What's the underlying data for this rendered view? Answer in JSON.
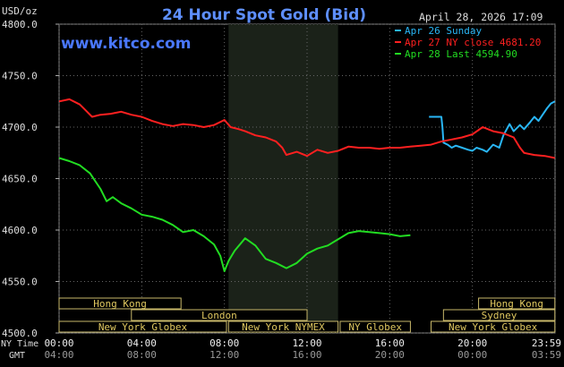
{
  "header": {
    "title": "24 Hour Spot Gold (Bid)",
    "unit": "USD/oz",
    "datetime": "April 28, 2026 17:09",
    "site": "www.kitco.com"
  },
  "legend": [
    {
      "text": "Apr 26 Sunday",
      "color": "#29b6f6"
    },
    {
      "text": "Apr 27 NY close 4681.20",
      "color": "#ff2020"
    },
    {
      "text": "Apr 28 Last 4594.90",
      "color": "#22dd22"
    }
  ],
  "axis": {
    "ny_time_label": "NY Time",
    "gmt_label": "GMT",
    "ny_ticks": [
      "00:00",
      "04:00",
      "08:00",
      "12:00",
      "16:00",
      "20:00",
      "23:59"
    ],
    "gmt_ticks": [
      "04:00",
      "08:00",
      "12:00",
      "16:00",
      "20:00",
      "00:00",
      "03:59"
    ]
  },
  "sessions": [
    {
      "label": "Hong Kong",
      "start": 0,
      "end": 5.9,
      "row": 0
    },
    {
      "label": "London",
      "start": 3.5,
      "end": 12.0,
      "row": 1
    },
    {
      "label": "New York Globex",
      "start": 0,
      "end": 8.1,
      "row": 2
    },
    {
      "label": "New York NYMEX",
      "start": 8.2,
      "end": 13.5,
      "row": 2
    },
    {
      "label": "NY Globex",
      "start": 13.6,
      "end": 17.0,
      "row": 2
    },
    {
      "label": "Hong Kong",
      "start": 20.3,
      "end": 23.99,
      "row": 0
    },
    {
      "label": "Sydney",
      "start": 18.6,
      "end": 23.99,
      "row": 1
    },
    {
      "label": "New York Globex",
      "start": 18.0,
      "end": 23.99,
      "row": 2
    }
  ],
  "chart_data": {
    "type": "line",
    "title": "24 Hour Spot Gold (Bid)",
    "ylabel": "USD/oz",
    "xlim": [
      0,
      24
    ],
    "ylim": [
      4500,
      4800
    ],
    "y_ticks": [
      "4800.0",
      "4750.0",
      "4700.0",
      "4650.0",
      "4600.0",
      "4550.0",
      "4500.0"
    ],
    "shaded_hours": [
      8.2,
      13.5
    ],
    "grid": true,
    "legend_position": "top-right",
    "series": [
      {
        "name": "Apr 26 Sunday",
        "color": "#29b6f6",
        "x": [
          17.9,
          18.5,
          18.55,
          18.6,
          18.8,
          19.0,
          19.2,
          19.5,
          19.8,
          20.0,
          20.2,
          20.5,
          20.7,
          21.0,
          21.3,
          21.5,
          21.8,
          22.0,
          22.3,
          22.5,
          22.8,
          23.0,
          23.2,
          23.4,
          23.6,
          23.8,
          23.99
        ],
        "y": [
          4710,
          4710,
          4700,
          4685,
          4683,
          4680,
          4682,
          4680,
          4678,
          4677,
          4680,
          4678,
          4676,
          4683,
          4680,
          4692,
          4703,
          4696,
          4702,
          4698,
          4705,
          4710,
          4706,
          4712,
          4718,
          4723,
          4725
        ]
      },
      {
        "name": "Apr 27 NY close 4681.20",
        "color": "#ff2020",
        "x": [
          0,
          0.5,
          1.0,
          1.3,
          1.6,
          2.0,
          2.5,
          3.0,
          3.5,
          4.0,
          4.5,
          5.0,
          5.5,
          6.0,
          6.5,
          7.0,
          7.5,
          8.0,
          8.3,
          8.7,
          9.0,
          9.5,
          10.0,
          10.5,
          10.8,
          11.0,
          11.5,
          12.0,
          12.5,
          13.0,
          13.5,
          14.0,
          14.5,
          15.0,
          15.5,
          16.0,
          16.5,
          17.0,
          17.5,
          18.0,
          18.5,
          19.0,
          19.5,
          20.0,
          20.5,
          21.0,
          21.5,
          22.0,
          22.3,
          22.5,
          23.0,
          23.5,
          23.99
        ],
        "y": [
          4725,
          4727,
          4722,
          4716,
          4710,
          4712,
          4713,
          4715,
          4712,
          4710,
          4706,
          4703,
          4701,
          4703,
          4702,
          4700,
          4702,
          4707,
          4700,
          4698,
          4696,
          4692,
          4690,
          4686,
          4680,
          4673,
          4676,
          4672,
          4678,
          4675,
          4677,
          4681,
          4680,
          4680,
          4679,
          4680,
          4680,
          4681,
          4682,
          4683,
          4686,
          4688,
          4690,
          4693,
          4700,
          4696,
          4694,
          4690,
          4680,
          4675,
          4673,
          4672,
          4670
        ]
      },
      {
        "name": "Apr 28 Last 4594.90",
        "color": "#22dd22",
        "x": [
          0,
          0.5,
          1.0,
          1.5,
          2.0,
          2.3,
          2.6,
          3.0,
          3.5,
          4.0,
          4.5,
          5.0,
          5.5,
          6.0,
          6.5,
          7.0,
          7.5,
          7.8,
          8.0,
          8.2,
          8.5,
          9.0,
          9.5,
          10.0,
          10.5,
          11.0,
          11.5,
          12.0,
          12.5,
          13.0,
          13.5,
          14.0,
          14.5,
          15.0,
          15.5,
          16.0,
          16.5,
          17.0
        ],
        "y": [
          4670,
          4667,
          4663,
          4655,
          4640,
          4628,
          4632,
          4626,
          4621,
          4615,
          4613,
          4610,
          4605,
          4598,
          4600,
          4594,
          4586,
          4575,
          4560,
          4570,
          4580,
          4592,
          4585,
          4572,
          4568,
          4563,
          4568,
          4577,
          4582,
          4585,
          4591,
          4597,
          4599,
          4598,
          4597,
          4596,
          4594,
          4595
        ]
      }
    ]
  }
}
